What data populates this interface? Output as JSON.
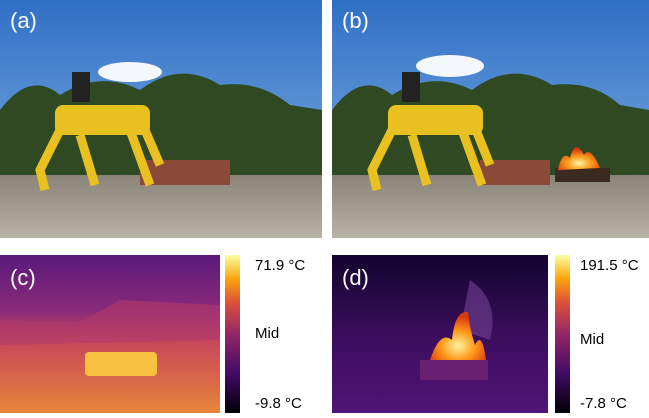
{
  "panels": [
    {
      "label": "(a)"
    },
    {
      "label": "(b)"
    },
    {
      "label": "(c)"
    },
    {
      "label": "(d)"
    }
  ],
  "colorbars": [
    {
      "max": "71.9 °C",
      "mid": "Mid",
      "min": "-9.8 °C"
    },
    {
      "max": "191.5 °C",
      "mid": "Mid",
      "min": "-7.8 °C"
    }
  ]
}
